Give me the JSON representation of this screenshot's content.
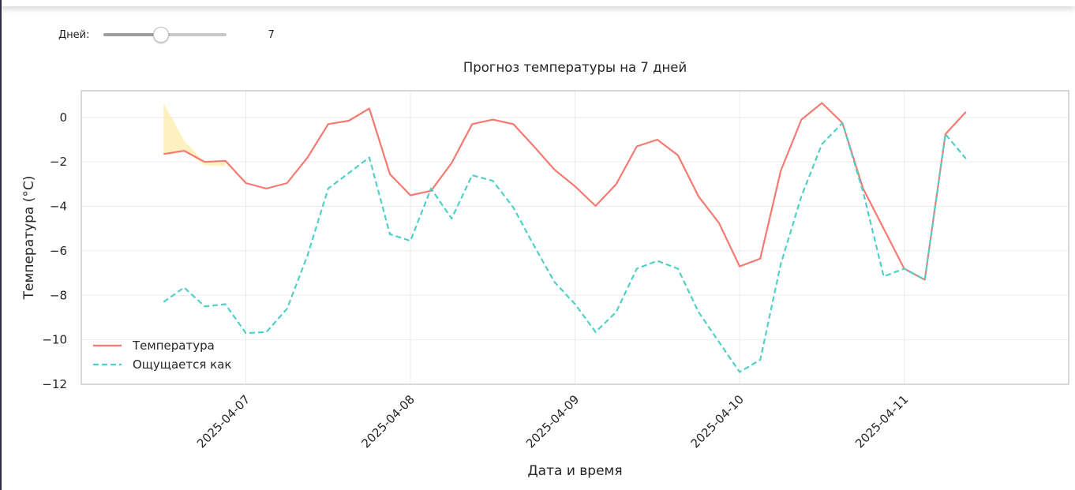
{
  "controls": {
    "days_label": "Дней:",
    "days_value": "7",
    "slider_fraction": 0.46
  },
  "chart_data": {
    "type": "line",
    "title": "Прогноз температуры на 7 дней",
    "xlabel": "Дата и время",
    "ylabel": "Температура (°C)",
    "ylim": [
      -12,
      1.2
    ],
    "xlim": [
      "2025-04-06 00:00",
      "2025-04-11 23:59"
    ],
    "yticks": [
      0,
      -2,
      -4,
      -6,
      -8,
      -10,
      -12
    ],
    "ytick_labels": [
      "0",
      "−2",
      "−4",
      "−6",
      "−8",
      "−10",
      "−12"
    ],
    "xticks": [
      "2025-04-07",
      "2025-04-08",
      "2025-04-09",
      "2025-04-10",
      "2025-04-11"
    ],
    "grid": true,
    "legend_position": "lower-left",
    "x": [
      "2025-04-06 12:00",
      "2025-04-06 15:00",
      "2025-04-06 18:00",
      "2025-04-06 21:00",
      "2025-04-07 00:00",
      "2025-04-07 03:00",
      "2025-04-07 06:00",
      "2025-04-07 09:00",
      "2025-04-07 12:00",
      "2025-04-07 15:00",
      "2025-04-07 18:00",
      "2025-04-07 21:00",
      "2025-04-08 00:00",
      "2025-04-08 03:00",
      "2025-04-08 06:00",
      "2025-04-08 09:00",
      "2025-04-08 12:00",
      "2025-04-08 15:00",
      "2025-04-08 18:00",
      "2025-04-08 21:00",
      "2025-04-09 00:00",
      "2025-04-09 03:00",
      "2025-04-09 06:00",
      "2025-04-09 09:00",
      "2025-04-09 12:00",
      "2025-04-09 15:00",
      "2025-04-09 18:00",
      "2025-04-09 21:00",
      "2025-04-10 00:00",
      "2025-04-10 03:00",
      "2025-04-10 06:00",
      "2025-04-10 09:00",
      "2025-04-10 12:00",
      "2025-04-10 15:00",
      "2025-04-10 18:00",
      "2025-04-10 21:00",
      "2025-04-11 00:00",
      "2025-04-11 03:00",
      "2025-04-11 06:00",
      "2025-04-11 09:00"
    ],
    "series": [
      {
        "name": "Температура",
        "color": "#f47a72",
        "dash": "solid",
        "values": [
          -1.65,
          -1.5,
          -2.0,
          -1.95,
          -2.95,
          -3.2,
          -2.95,
          -1.8,
          -0.3,
          -0.15,
          0.4,
          -2.55,
          -3.5,
          -3.3,
          -2.05,
          -0.3,
          -0.1,
          -0.3,
          -1.3,
          -2.35,
          -3.1,
          -3.98,
          -3.0,
          -1.3,
          -1.0,
          -1.7,
          -3.55,
          -4.75,
          -6.7,
          -6.35,
          -2.4,
          -0.1,
          0.65,
          -0.25,
          -3.2,
          -5.0,
          -6.8,
          -7.3,
          -0.75,
          0.25
        ]
      },
      {
        "name": "Ощущается как",
        "color": "#4fd0c8",
        "dash": "dashed",
        "values": [
          -8.3,
          -7.65,
          -8.5,
          -8.4,
          -9.7,
          -9.65,
          -8.6,
          -6.2,
          -3.2,
          -2.5,
          -1.8,
          -5.25,
          -5.55,
          -3.2,
          -4.55,
          -2.6,
          -2.85,
          -4.05,
          -5.75,
          -7.4,
          -8.4,
          -9.65,
          -8.75,
          -6.8,
          -6.45,
          -6.8,
          -8.75,
          -10.1,
          -11.45,
          -10.9,
          -6.6,
          -3.55,
          -1.2,
          -0.25,
          -3.35,
          -7.15,
          -6.8,
          -7.3,
          -0.75,
          -1.85
        ]
      }
    ],
    "band": {
      "color": "#fce58a",
      "x": [
        "2025-04-06 12:00",
        "2025-04-06 15:00",
        "2025-04-06 18:00",
        "2025-04-06 21:00"
      ],
      "upper": [
        0.65,
        -1.05,
        -2.05,
        -1.95
      ],
      "lower": [
        -1.65,
        -1.5,
        -2.15,
        -2.2
      ]
    }
  }
}
